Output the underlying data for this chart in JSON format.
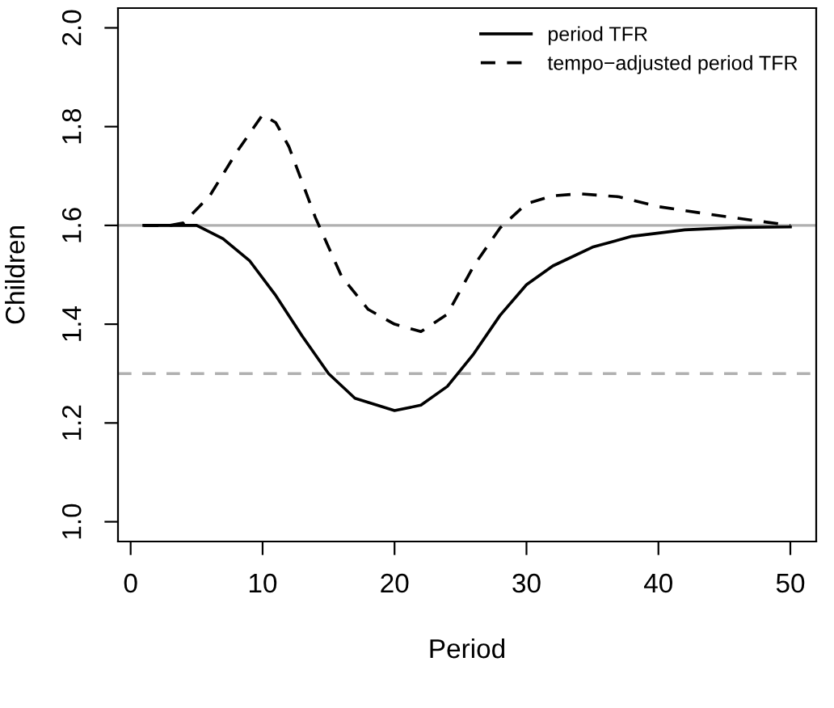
{
  "chart_data": {
    "type": "line",
    "xlabel": "Period",
    "ylabel": "Children",
    "xlim": [
      -0.96,
      51.96
    ],
    "ylim": [
      0.96,
      2.04
    ],
    "xticks": [
      0,
      10,
      20,
      30,
      40,
      50
    ],
    "yticks": [
      {
        "value": 1,
        "label": "1.0"
      },
      1.2,
      1.4,
      1.6,
      1.8,
      {
        "value": 2,
        "label": "2.0"
      }
    ],
    "grid": false,
    "legend": "top right",
    "ref_lines": [
      {
        "axis": "y",
        "value": 1.6,
        "color": "#b0b0b0",
        "line_style": "solid"
      },
      {
        "axis": "y",
        "value": 1.3,
        "color": "#b0b0b0",
        "line_style": "dashed"
      }
    ],
    "series": [
      {
        "name": "period TFR",
        "color": "#000000",
        "line_style": "solid",
        "x": [
          1,
          5,
          7,
          9,
          11,
          13,
          15,
          17,
          20,
          22,
          24,
          26,
          28,
          30,
          32,
          35,
          38,
          42,
          46,
          50
        ],
        "values": [
          1.6,
          1.6,
          1.573,
          1.529,
          1.458,
          1.376,
          1.3,
          1.25,
          1.225,
          1.236,
          1.274,
          1.34,
          1.418,
          1.48,
          1.518,
          1.556,
          1.578,
          1.591,
          1.596,
          1.597
        ]
      },
      {
        "name": "tempo−adjusted period TFR",
        "color": "#000000",
        "line_style": "dashed",
        "x": [
          1,
          3,
          4,
          6,
          8,
          10,
          11,
          12,
          14,
          16,
          18,
          20,
          22,
          24,
          26,
          28,
          30,
          32,
          34,
          37,
          40,
          44,
          47,
          50
        ],
        "values": [
          1.6,
          1.6,
          1.605,
          1.66,
          1.747,
          1.824,
          1.808,
          1.759,
          1.616,
          1.496,
          1.43,
          1.4,
          1.385,
          1.42,
          1.518,
          1.595,
          1.644,
          1.66,
          1.664,
          1.658,
          1.638,
          1.622,
          1.611,
          1.6
        ]
      }
    ]
  }
}
